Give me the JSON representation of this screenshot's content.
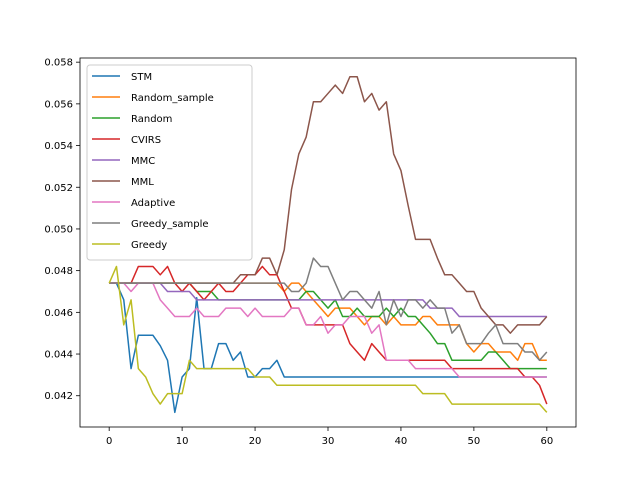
{
  "chart_data": {
    "type": "line",
    "title": "",
    "xlabel": "",
    "ylabel": "",
    "xlim": [
      -4,
      64
    ],
    "ylim": [
      0.0405,
      0.0582
    ],
    "xticks": [
      0,
      10,
      20,
      30,
      40,
      50,
      60
    ],
    "yticks": [
      0.042,
      0.044,
      0.046,
      0.048,
      0.05,
      0.052,
      0.054,
      0.056,
      0.058
    ],
    "ytick_labels": [
      "0.042",
      "0.044",
      "0.046",
      "0.048",
      "0.050",
      "0.052",
      "0.054",
      "0.056",
      "0.058"
    ],
    "grid": false,
    "legend_position": "top-left",
    "series": [
      {
        "name": "STM",
        "color": "#1f77b4",
        "values": [
          0.0474,
          0.0474,
          0.0466,
          0.0433,
          0.0449,
          0.0449,
          0.0449,
          0.0444,
          0.0437,
          0.0412,
          0.0429,
          0.0433,
          0.0467,
          0.0433,
          0.0433,
          0.0445,
          0.0445,
          0.0437,
          0.0441,
          0.0429,
          0.0429,
          0.0433,
          0.0433,
          0.0437,
          0.0429,
          0.0429,
          0.0429,
          0.0429,
          0.0429,
          0.0429,
          0.0429,
          0.0429,
          0.0429,
          0.0429,
          0.0429,
          0.0429,
          0.0429,
          0.0429,
          0.0429,
          0.0429,
          0.0429,
          0.0429,
          0.0429,
          0.0429,
          0.0429,
          0.0429,
          0.0429,
          0.0429,
          0.0429,
          0.0429,
          0.0429,
          0.0429,
          0.0429,
          0.0429,
          0.0429,
          0.0429,
          0.0429,
          0.0429,
          0.0429,
          0.0429,
          0.0429
        ]
      },
      {
        "name": "Random_sample",
        "color": "#ff7f0e",
        "values": [
          0.0474,
          0.0474,
          0.0474,
          0.0474,
          0.0474,
          0.0474,
          0.0474,
          0.0474,
          0.0474,
          0.0474,
          0.0474,
          0.0474,
          0.0474,
          0.0474,
          0.0474,
          0.0474,
          0.0474,
          0.0474,
          0.0474,
          0.0474,
          0.0474,
          0.0474,
          0.0474,
          0.0474,
          0.047,
          0.0474,
          0.0474,
          0.047,
          0.0466,
          0.0462,
          0.0458,
          0.0462,
          0.0462,
          0.0462,
          0.0458,
          0.0454,
          0.0458,
          0.0458,
          0.0454,
          0.0458,
          0.0454,
          0.0454,
          0.0454,
          0.0458,
          0.0458,
          0.0454,
          0.0454,
          0.0454,
          0.0454,
          0.0445,
          0.0441,
          0.0445,
          0.0445,
          0.0441,
          0.0441,
          0.0441,
          0.0437,
          0.0445,
          0.0445,
          0.0437,
          0.0437
        ]
      },
      {
        "name": "Random",
        "color": "#2ca02c",
        "values": [
          0.0474,
          0.0474,
          0.0474,
          0.0474,
          0.0474,
          0.0474,
          0.0474,
          0.0474,
          0.0474,
          0.0474,
          0.0474,
          0.0474,
          0.047,
          0.047,
          0.047,
          0.0466,
          0.0466,
          0.0466,
          0.0466,
          0.0466,
          0.0466,
          0.0466,
          0.0466,
          0.0466,
          0.0466,
          0.0466,
          0.0466,
          0.047,
          0.047,
          0.0466,
          0.0462,
          0.0466,
          0.0458,
          0.0458,
          0.0462,
          0.0458,
          0.0458,
          0.0458,
          0.0462,
          0.0458,
          0.0462,
          0.0458,
          0.0458,
          0.0454,
          0.045,
          0.0445,
          0.0445,
          0.0437,
          0.0437,
          0.0437,
          0.0437,
          0.0437,
          0.0441,
          0.0441,
          0.0437,
          0.0433,
          0.0433,
          0.0433,
          0.0433,
          0.0433,
          0.0433
        ]
      },
      {
        "name": "CVIRS",
        "color": "#d62728",
        "values": [
          0.0474,
          0.0474,
          0.0474,
          0.0474,
          0.0482,
          0.0482,
          0.0482,
          0.0478,
          0.0482,
          0.0474,
          0.047,
          0.0474,
          0.047,
          0.0466,
          0.047,
          0.0474,
          0.047,
          0.047,
          0.0474,
          0.0478,
          0.0478,
          0.0482,
          0.0478,
          0.0478,
          0.047,
          0.0462,
          0.0462,
          0.0454,
          0.0454,
          0.0454,
          0.0454,
          0.0454,
          0.0454,
          0.0445,
          0.0441,
          0.0437,
          0.0445,
          0.0441,
          0.0437,
          0.0437,
          0.0437,
          0.0437,
          0.0437,
          0.0437,
          0.0437,
          0.0437,
          0.0437,
          0.0433,
          0.0433,
          0.0433,
          0.0433,
          0.0433,
          0.0433,
          0.0433,
          0.0433,
          0.0433,
          0.0433,
          0.0429,
          0.0429,
          0.0425,
          0.0416
        ]
      },
      {
        "name": "MMC",
        "color": "#9467bd",
        "values": [
          0.0474,
          0.0474,
          0.0474,
          0.0474,
          0.0474,
          0.0474,
          0.0474,
          0.0474,
          0.047,
          0.047,
          0.047,
          0.047,
          0.0466,
          0.0466,
          0.0466,
          0.0466,
          0.0466,
          0.0466,
          0.0466,
          0.0466,
          0.0466,
          0.0466,
          0.0466,
          0.0466,
          0.0466,
          0.0466,
          0.0466,
          0.0466,
          0.0466,
          0.0466,
          0.0466,
          0.0466,
          0.0466,
          0.0466,
          0.0466,
          0.0466,
          0.0466,
          0.0466,
          0.0466,
          0.0466,
          0.0466,
          0.0466,
          0.0466,
          0.0466,
          0.0462,
          0.0462,
          0.0462,
          0.0462,
          0.0458,
          0.0458,
          0.0458,
          0.0458,
          0.0458,
          0.0458,
          0.0458,
          0.0458,
          0.0458,
          0.0458,
          0.0458,
          0.0458,
          0.0458
        ]
      },
      {
        "name": "MML",
        "color": "#8c564b",
        "values": [
          0.0474,
          0.0474,
          0.0474,
          0.0474,
          0.0474,
          0.0474,
          0.0474,
          0.0474,
          0.0474,
          0.0474,
          0.0474,
          0.0474,
          0.0474,
          0.0474,
          0.0474,
          0.0474,
          0.0474,
          0.0474,
          0.0478,
          0.0478,
          0.0478,
          0.0486,
          0.0486,
          0.0478,
          0.049,
          0.0519,
          0.0536,
          0.0544,
          0.0561,
          0.0561,
          0.0565,
          0.0569,
          0.0565,
          0.0573,
          0.0573,
          0.0561,
          0.0565,
          0.0557,
          0.0561,
          0.0536,
          0.0528,
          0.0511,
          0.0495,
          0.0495,
          0.0495,
          0.0486,
          0.0478,
          0.0478,
          0.0474,
          0.047,
          0.047,
          0.0462,
          0.0458,
          0.0454,
          0.0454,
          0.045,
          0.0454,
          0.0454,
          0.0454,
          0.0454,
          0.0458
        ]
      },
      {
        "name": "Adaptive",
        "color": "#e377c2",
        "values": [
          0.0474,
          0.0474,
          0.0474,
          0.047,
          0.0474,
          0.0474,
          0.0474,
          0.0466,
          0.0462,
          0.0458,
          0.0458,
          0.0458,
          0.0462,
          0.0458,
          0.0458,
          0.0458,
          0.0462,
          0.0462,
          0.0462,
          0.0458,
          0.0462,
          0.0458,
          0.0458,
          0.0458,
          0.0458,
          0.0462,
          0.0462,
          0.0454,
          0.0454,
          0.0458,
          0.045,
          0.0454,
          0.0454,
          0.0458,
          0.0458,
          0.0458,
          0.045,
          0.0454,
          0.0437,
          0.0437,
          0.0437,
          0.0437,
          0.0433,
          0.0433,
          0.0433,
          0.0433,
          0.0433,
          0.0433,
          0.0429,
          0.0429,
          0.0429,
          0.0429,
          0.0429,
          0.0429,
          0.0429,
          0.0429,
          0.0429,
          0.0429,
          0.0429,
          0.0429,
          0.0429
        ]
      },
      {
        "name": "Greedy_sample",
        "color": "#7f7f7f",
        "values": [
          0.0474,
          0.0474,
          0.0474,
          0.0474,
          0.0474,
          0.0474,
          0.0474,
          0.0474,
          0.0474,
          0.0474,
          0.0474,
          0.0474,
          0.0474,
          0.0474,
          0.0474,
          0.0474,
          0.0474,
          0.0474,
          0.0474,
          0.0474,
          0.0474,
          0.0474,
          0.0474,
          0.0474,
          0.0474,
          0.047,
          0.047,
          0.0474,
          0.0486,
          0.0482,
          0.0482,
          0.0474,
          0.0466,
          0.047,
          0.047,
          0.0466,
          0.0462,
          0.047,
          0.0454,
          0.0466,
          0.0458,
          0.0466,
          0.0466,
          0.0462,
          0.0466,
          0.0462,
          0.0462,
          0.045,
          0.0454,
          0.0445,
          0.0445,
          0.0445,
          0.045,
          0.0454,
          0.0445,
          0.0445,
          0.0445,
          0.0441,
          0.0441,
          0.0437,
          0.0441
        ]
      },
      {
        "name": "Greedy",
        "color": "#bcbd22",
        "values": [
          0.0474,
          0.0482,
          0.0454,
          0.0466,
          0.0433,
          0.0429,
          0.0421,
          0.0416,
          0.0421,
          0.0421,
          0.0421,
          0.0437,
          0.0433,
          0.0433,
          0.0433,
          0.0433,
          0.0433,
          0.0433,
          0.0433,
          0.0433,
          0.0429,
          0.0429,
          0.0429,
          0.0425,
          0.0425,
          0.0425,
          0.0425,
          0.0425,
          0.0425,
          0.0425,
          0.0425,
          0.0425,
          0.0425,
          0.0425,
          0.0425,
          0.0425,
          0.0425,
          0.0425,
          0.0425,
          0.0425,
          0.0425,
          0.0425,
          0.0425,
          0.0421,
          0.0421,
          0.0421,
          0.0421,
          0.0416,
          0.0416,
          0.0416,
          0.0416,
          0.0416,
          0.0416,
          0.0416,
          0.0416,
          0.0416,
          0.0416,
          0.0416,
          0.0416,
          0.0416,
          0.0412
        ]
      }
    ]
  }
}
